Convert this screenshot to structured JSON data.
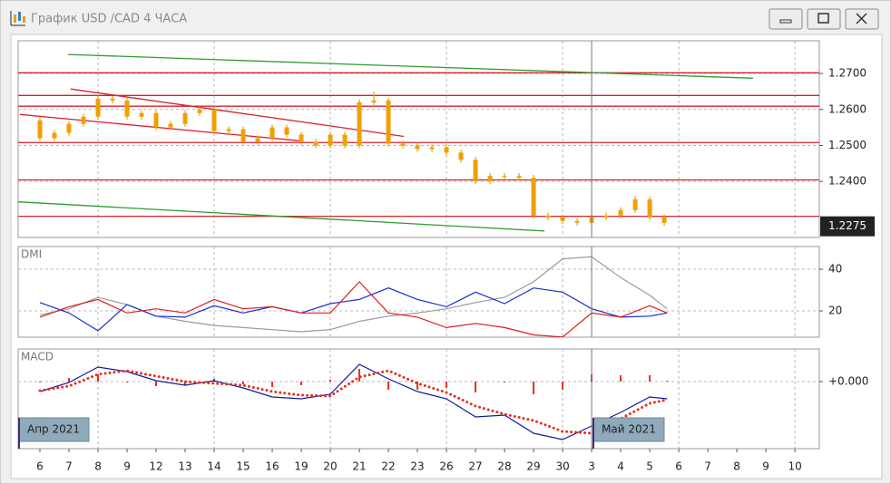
{
  "window": {
    "title": "График USD /CAD  4 ЧАСА"
  },
  "period_labels": [
    "Апр 2021",
    "Май 2021"
  ],
  "chart_data": [
    {
      "type": "candlestick",
      "color": "#f0a000",
      "xlim": [
        -0.75,
        26.84
      ],
      "ylim": [
        1.2244,
        1.2791
      ],
      "yticks": [
        {
          "value": 1.27,
          "label": "1.2700"
        },
        {
          "value": 1.26,
          "label": "1.2600"
        },
        {
          "value": 1.25,
          "label": "1.2500"
        },
        {
          "value": 1.24,
          "label": "1.2400"
        }
      ],
      "x": [
        0,
        0.5,
        1,
        1.5,
        2,
        2.5,
        3,
        3.5,
        4,
        4.5,
        5,
        5.5,
        6,
        6.5,
        7,
        7.5,
        8,
        8.5,
        9,
        9.5,
        10,
        10.5,
        11,
        11.5,
        12,
        12.5,
        13,
        13.5,
        14,
        14.5,
        15,
        15.5,
        16,
        16.5,
        17,
        17.5,
        18,
        18.5,
        19,
        19.5,
        20,
        20.5,
        21,
        21.5
      ],
      "open": [
        1.257,
        1.252,
        1.2535,
        1.256,
        1.258,
        1.263,
        1.2625,
        1.258,
        1.259,
        1.255,
        1.256,
        1.259,
        1.26,
        1.254,
        1.2545,
        1.251,
        1.252,
        1.255,
        1.253,
        1.251,
        1.25,
        1.253,
        1.25,
        1.262,
        1.2625,
        1.2505,
        1.25,
        1.249,
        1.2495,
        1.248,
        1.246,
        1.24,
        1.2415,
        1.2415,
        1.241,
        1.2305,
        1.23,
        1.229,
        1.2285,
        1.23,
        1.2305,
        1.232,
        1.235,
        1.23
      ],
      "high": [
        1.2578,
        1.2543,
        1.2568,
        1.2588,
        1.2638,
        1.2638,
        1.2633,
        1.2598,
        1.2598,
        1.2568,
        1.2598,
        1.2608,
        1.2608,
        1.2553,
        1.2553,
        1.2528,
        1.2558,
        1.2558,
        1.2538,
        1.2518,
        1.2538,
        1.2538,
        1.2628,
        1.265,
        1.2633,
        1.2513,
        1.2508,
        1.2503,
        1.2503,
        1.2488,
        1.2468,
        1.2423,
        1.2423,
        1.2423,
        1.2418,
        1.2313,
        1.2308,
        1.2298,
        1.2308,
        1.2313,
        1.2328,
        1.236,
        1.2358,
        1.2308
      ],
      "low": [
        1.2512,
        1.2512,
        1.2527,
        1.2552,
        1.2572,
        1.2617,
        1.2572,
        1.2572,
        1.2542,
        1.2542,
        1.2552,
        1.2582,
        1.2532,
        1.2532,
        1.2502,
        1.2502,
        1.2512,
        1.2522,
        1.2502,
        1.2492,
        1.2492,
        1.2492,
        1.2492,
        1.2612,
        1.2497,
        1.2492,
        1.2482,
        1.2482,
        1.2472,
        1.2452,
        1.2392,
        1.2392,
        1.2407,
        1.2402,
        1.2297,
        1.2292,
        1.2282,
        1.2277,
        1.2277,
        1.2292,
        1.2297,
        1.2312,
        1.2292,
        1.2277
      ],
      "close": [
        1.252,
        1.2535,
        1.256,
        1.258,
        1.263,
        1.2625,
        1.258,
        1.259,
        1.255,
        1.256,
        1.259,
        1.26,
        1.254,
        1.2545,
        1.251,
        1.252,
        1.255,
        1.253,
        1.251,
        1.25,
        1.253,
        1.25,
        1.262,
        1.2625,
        1.2505,
        1.25,
        1.249,
        1.2495,
        1.248,
        1.246,
        1.24,
        1.2415,
        1.2415,
        1.241,
        1.2305,
        1.23,
        1.229,
        1.2285,
        1.23,
        1.2305,
        1.232,
        1.235,
        1.23,
        1.2285
      ],
      "hlines": {
        "color": "#d8202a",
        "values": [
          1.2702,
          1.2639,
          1.2609,
          1.2508,
          1.2404,
          1.2303
        ]
      },
      "trendlines": [
        {
          "color": "#2f9a2f",
          "x": [
            0.97,
            24.56
          ],
          "y": [
            1.2753,
            1.2687
          ]
        },
        {
          "color": "#2f9a2f",
          "x": [
            -0.75,
            17.38
          ],
          "y": [
            1.2343,
            1.2262
          ]
        },
        {
          "color": "#d8202a",
          "x": [
            1.06,
            12.53
          ],
          "y": [
            1.2657,
            1.2525
          ]
        },
        {
          "color": "#d8202a",
          "x": [
            -0.69,
            8.94
          ],
          "y": [
            1.2586,
            1.2513
          ]
        }
      ],
      "separator_x": 19,
      "last_price": 1.2275
    },
    {
      "type": "line",
      "title": "DMI",
      "xlim": [
        -0.75,
        26.84
      ],
      "ylim": [
        7.4,
        50.9
      ],
      "yticks": [
        20,
        40
      ],
      "x": [
        0,
        1,
        2,
        3,
        4,
        5,
        6,
        7,
        8,
        9,
        10,
        11,
        12,
        13,
        14,
        15,
        16,
        17,
        18,
        19,
        20,
        21,
        21.6
      ],
      "series": [
        {
          "color": "#9a9a9a",
          "values": [
            18,
            21,
            26.5,
            23,
            17.5,
            15,
            13,
            12,
            11,
            10,
            11,
            15,
            17.5,
            19,
            21,
            24,
            26.5,
            34,
            45,
            46,
            36,
            27.5,
            21
          ]
        },
        {
          "color": "#1c2bd0",
          "values": [
            24,
            19,
            10.5,
            23,
            17.5,
            17,
            22.5,
            19,
            22,
            19,
            23.5,
            25.5,
            31,
            25.5,
            22,
            29,
            23.5,
            31,
            29,
            21,
            17,
            17.5,
            19
          ]
        },
        {
          "color": "#e01e1e",
          "values": [
            17,
            22,
            25.5,
            19,
            21,
            19,
            25.5,
            21,
            22,
            19,
            19,
            34,
            19,
            17,
            12,
            14,
            12,
            8.5,
            7.5,
            19,
            17,
            22.5,
            19
          ]
        }
      ]
    },
    {
      "type": "macd",
      "title": "MACD",
      "xlim": [
        -0.75,
        26.84
      ],
      "ylim": [
        -0.0074,
        0.0036
      ],
      "yticks": [
        {
          "value": 0,
          "label": "+0.000"
        }
      ],
      "xticks": [
        {
          "value": 0,
          "label": "6"
        },
        {
          "value": 1,
          "label": "7"
        },
        {
          "value": 2,
          "label": "8"
        },
        {
          "value": 3,
          "label": "9"
        },
        {
          "value": 4,
          "label": "12"
        },
        {
          "value": 5,
          "label": "13"
        },
        {
          "value": 6,
          "label": "14"
        },
        {
          "value": 7,
          "label": "15"
        },
        {
          "value": 8,
          "label": "16"
        },
        {
          "value": 9,
          "label": "19"
        },
        {
          "value": 10,
          "label": "20"
        },
        {
          "value": 11,
          "label": "21"
        },
        {
          "value": 12,
          "label": "22"
        },
        {
          "value": 13,
          "label": "23"
        },
        {
          "value": 14,
          "label": "26"
        },
        {
          "value": 15,
          "label": "27"
        },
        {
          "value": 16,
          "label": "28"
        },
        {
          "value": 17,
          "label": "29"
        },
        {
          "value": 18,
          "label": "30"
        },
        {
          "value": 19,
          "label": "3"
        },
        {
          "value": 20,
          "label": "4"
        },
        {
          "value": 21,
          "label": "5"
        },
        {
          "value": 22,
          "label": "6"
        },
        {
          "value": 23,
          "label": "7"
        },
        {
          "value": 24,
          "label": "8"
        },
        {
          "value": 25,
          "label": "9"
        },
        {
          "value": 26,
          "label": "10"
        }
      ],
      "x": [
        0,
        1,
        2,
        3,
        4,
        5,
        6,
        7,
        8,
        9,
        10,
        11,
        12,
        13,
        14,
        15,
        16,
        17,
        18,
        19,
        20,
        21,
        21.6
      ],
      "series": [
        {
          "color": "#101c9a",
          "values": [
            -0.0011,
            -0.0001,
            0.0016,
            0.0011,
            0.0001,
            -0.0004,
            0.0001,
            -0.0007,
            -0.0017,
            -0.0019,
            -0.0014,
            0.0019,
            0.0003,
            -0.0011,
            -0.0019,
            -0.0039,
            -0.0037,
            -0.0057,
            -0.0064,
            -0.0049,
            -0.0034,
            -0.0017,
            -0.0019
          ]
        },
        {
          "color": "#e5301e",
          "style": "dotted",
          "values": [
            -0.001,
            -0.0005,
            0.0008,
            0.0012,
            0.0006,
            0.0,
            -0.0002,
            -0.0004,
            -0.0011,
            -0.0015,
            -0.0016,
            0.0005,
            0.0012,
            -0.0002,
            -0.0012,
            -0.0027,
            -0.0036,
            -0.0043,
            -0.0055,
            -0.0057,
            -0.0041,
            -0.0024,
            -0.002
          ]
        }
      ],
      "histogram": {
        "color": "#e5301e",
        "values": [
          -0.0001,
          0.0004,
          0.0008,
          -0.0001,
          -0.0005,
          -0.0004,
          0.0003,
          -0.0003,
          -0.0006,
          -0.0004,
          0.0002,
          0.0014,
          -0.0009,
          -0.0009,
          -0.0007,
          -0.0012,
          -0.0001,
          -0.0014,
          -0.0009,
          0.0008,
          0.0007,
          0.0007,
          0.0001
        ]
      }
    }
  ]
}
